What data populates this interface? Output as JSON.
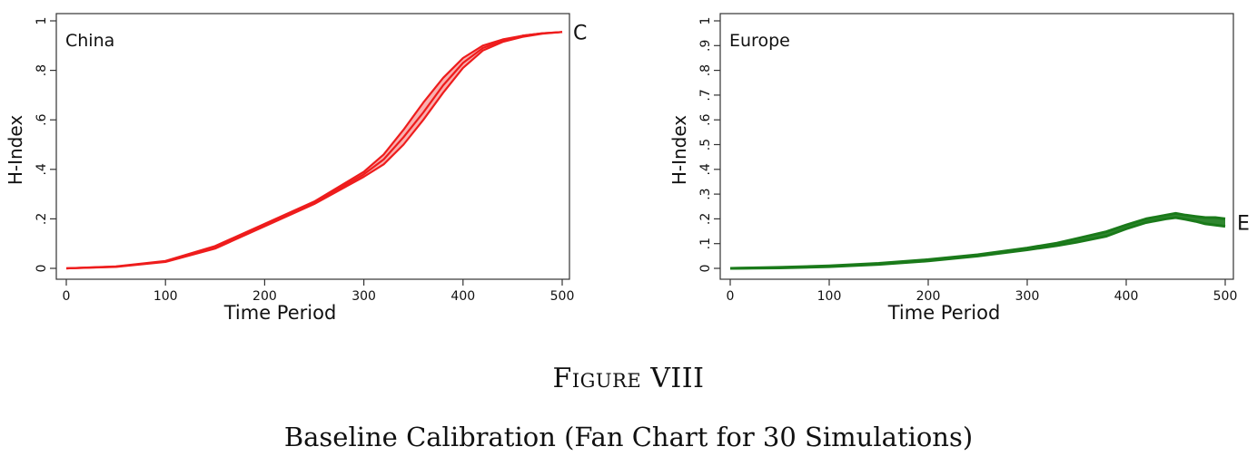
{
  "figure": {
    "number": "Figure VIII",
    "title": "Baseline Calibration (Fan Chart for 30 Simulations)"
  },
  "chart_data": [
    {
      "type": "line",
      "panel_label": "China",
      "end_label": "C",
      "xlabel": "Time Period",
      "ylabel": "H-Index",
      "xlim": [
        0,
        500
      ],
      "ylim": [
        0,
        1
      ],
      "xticks": [
        "0",
        "100",
        "200",
        "300",
        "400",
        "500"
      ],
      "yticks": [
        "0",
        ".2",
        ".4",
        ".6",
        ".8",
        "1"
      ],
      "color": "#ee1c1c",
      "grid": false,
      "series_upper": {
        "x": [
          0,
          50,
          100,
          150,
          200,
          250,
          300,
          320,
          340,
          360,
          380,
          400,
          420,
          440,
          460,
          480,
          500
        ],
        "y": [
          0.0,
          0.008,
          0.03,
          0.09,
          0.18,
          0.27,
          0.39,
          0.46,
          0.56,
          0.67,
          0.77,
          0.85,
          0.9,
          0.925,
          0.94,
          0.95,
          0.955
        ]
      },
      "series_mid": {
        "x": [
          0,
          50,
          100,
          150,
          200,
          250,
          300,
          320,
          340,
          360,
          380,
          400,
          420,
          440,
          460,
          480,
          500
        ],
        "y": [
          0.0,
          0.007,
          0.028,
          0.085,
          0.175,
          0.265,
          0.38,
          0.44,
          0.53,
          0.63,
          0.74,
          0.83,
          0.89,
          0.92,
          0.94,
          0.95,
          0.955
        ]
      },
      "series_lower": {
        "x": [
          0,
          50,
          100,
          150,
          200,
          250,
          300,
          320,
          340,
          360,
          380,
          400,
          420,
          440,
          460,
          480,
          500
        ],
        "y": [
          0.0,
          0.006,
          0.026,
          0.08,
          0.17,
          0.26,
          0.37,
          0.42,
          0.5,
          0.6,
          0.71,
          0.81,
          0.88,
          0.915,
          0.935,
          0.948,
          0.955
        ]
      }
    },
    {
      "type": "line",
      "panel_label": "Europe",
      "end_label": "E",
      "xlabel": "Time Period",
      "ylabel": "H-Index",
      "xlim": [
        0,
        500
      ],
      "ylim": [
        0,
        1
      ],
      "xticks": [
        "0",
        "100",
        "200",
        "300",
        "400",
        "500"
      ],
      "yticks": [
        "0",
        ".1",
        ".2",
        ".3",
        ".4",
        ".5",
        ".6",
        ".7",
        ".8",
        ".9",
        "1"
      ],
      "color": "#1a7a1a",
      "grid": false,
      "series_upper": {
        "x": [
          0,
          50,
          100,
          150,
          200,
          250,
          300,
          330,
          350,
          380,
          400,
          420,
          440,
          450,
          460,
          470,
          480,
          490,
          500
        ],
        "y": [
          0.0,
          0.004,
          0.01,
          0.02,
          0.035,
          0.055,
          0.082,
          0.102,
          0.12,
          0.148,
          0.175,
          0.2,
          0.215,
          0.222,
          0.215,
          0.21,
          0.205,
          0.205,
          0.2
        ]
      },
      "series_lower": {
        "x": [
          0,
          50,
          100,
          150,
          200,
          250,
          300,
          330,
          350,
          380,
          400,
          420,
          440,
          450,
          460,
          470,
          480,
          490,
          500
        ],
        "y": [
          0.0,
          0.002,
          0.007,
          0.016,
          0.03,
          0.05,
          0.075,
          0.092,
          0.106,
          0.13,
          0.16,
          0.185,
          0.2,
          0.205,
          0.198,
          0.19,
          0.18,
          0.175,
          0.17
        ]
      }
    }
  ]
}
